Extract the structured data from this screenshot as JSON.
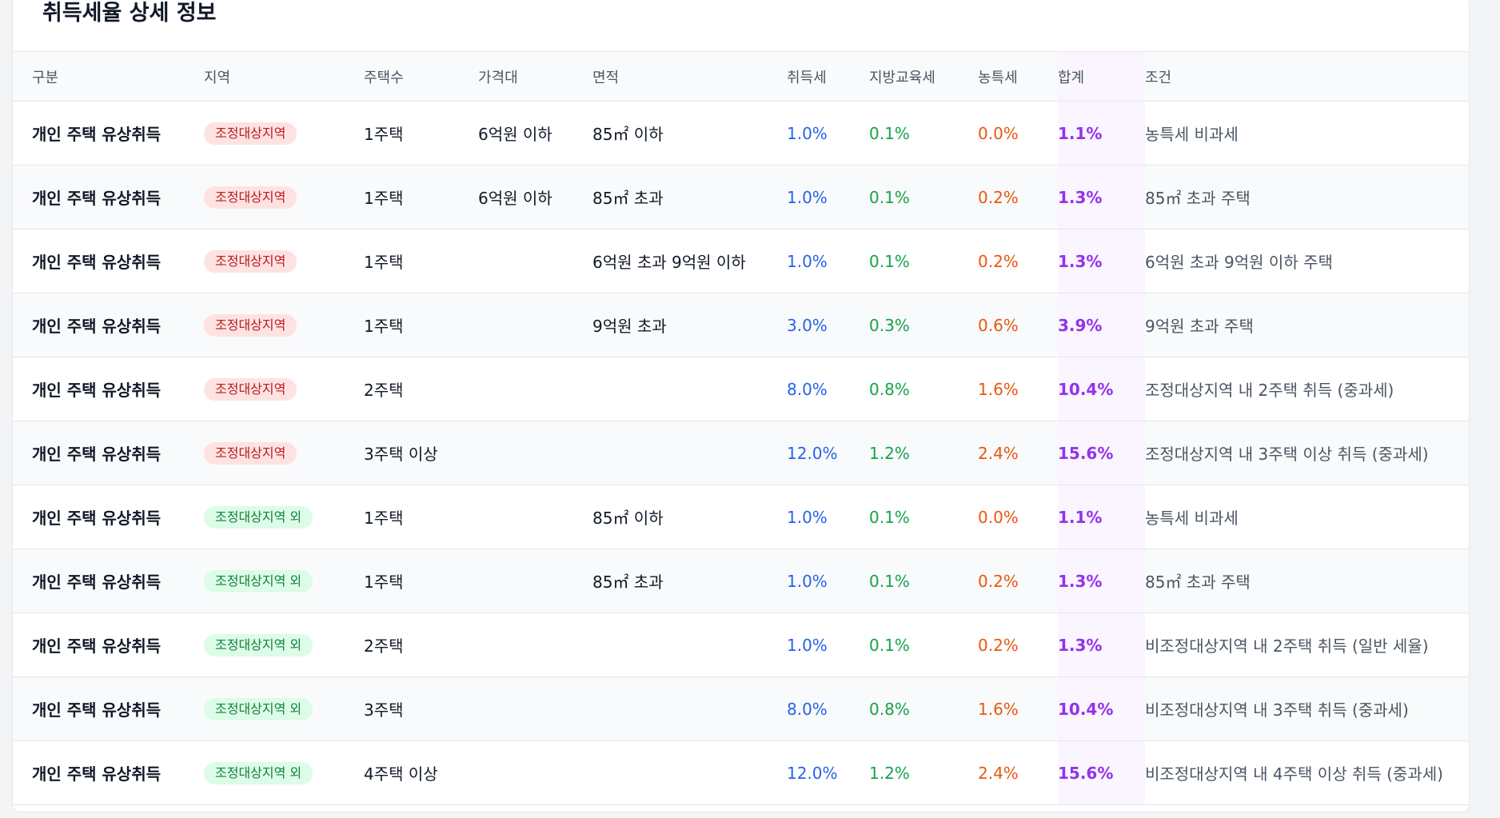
{
  "title": "취득세율 상세 정보",
  "colors": {
    "acquisition_tax": "#2563eb",
    "education_tax": "#16a34a",
    "agriculture_tax": "#ea580c",
    "total": "#9333ea",
    "badge_adjusted_bg": "#fee2e2",
    "badge_non_adjusted_bg": "#dcfce7"
  },
  "columns": [
    "구분",
    "지역",
    "주택수",
    "가격대",
    "면적",
    "취득세",
    "지방교육세",
    "농특세",
    "합계",
    "조건"
  ],
  "rows": [
    {
      "category": "개인 주택 유상취득",
      "region": "조정대상지역",
      "region_type": "adj",
      "houses": "1주택",
      "price": "6억원 이하",
      "area": "85㎡ 이하",
      "acq": "1.0%",
      "edu": "0.1%",
      "agr": "0.0%",
      "total": "1.1%",
      "condition": "농특세 비과세"
    },
    {
      "category": "개인 주택 유상취득",
      "region": "조정대상지역",
      "region_type": "adj",
      "houses": "1주택",
      "price": "6억원 이하",
      "area": "85㎡ 초과",
      "acq": "1.0%",
      "edu": "0.1%",
      "agr": "0.2%",
      "total": "1.3%",
      "condition": "85㎡ 초과 주택"
    },
    {
      "category": "개인 주택 유상취득",
      "region": "조정대상지역",
      "region_type": "adj",
      "houses": "1주택",
      "price": "",
      "area": "6억원 초과 9억원 이하",
      "acq": "1.0%",
      "edu": "0.1%",
      "agr": "0.2%",
      "total": "1.3%",
      "condition": "6억원 초과 9억원 이하 주택"
    },
    {
      "category": "개인 주택 유상취득",
      "region": "조정대상지역",
      "region_type": "adj",
      "houses": "1주택",
      "price": "",
      "area": "9억원 초과",
      "acq": "3.0%",
      "edu": "0.3%",
      "agr": "0.6%",
      "total": "3.9%",
      "condition": "9억원 초과 주택"
    },
    {
      "category": "개인 주택 유상취득",
      "region": "조정대상지역",
      "region_type": "adj",
      "houses": "2주택",
      "price": "",
      "area": "",
      "acq": "8.0%",
      "edu": "0.8%",
      "agr": "1.6%",
      "total": "10.4%",
      "condition": "조정대상지역 내 2주택 취득 (중과세)"
    },
    {
      "category": "개인 주택 유상취득",
      "region": "조정대상지역",
      "region_type": "adj",
      "houses": "3주택 이상",
      "price": "",
      "area": "",
      "acq": "12.0%",
      "edu": "1.2%",
      "agr": "2.4%",
      "total": "15.6%",
      "condition": "조정대상지역 내 3주택 이상 취득 (중과세)"
    },
    {
      "category": "개인 주택 유상취득",
      "region": "조정대상지역 외",
      "region_type": "non",
      "houses": "1주택",
      "price": "",
      "area": "85㎡ 이하",
      "acq": "1.0%",
      "edu": "0.1%",
      "agr": "0.0%",
      "total": "1.1%",
      "condition": "농특세 비과세"
    },
    {
      "category": "개인 주택 유상취득",
      "region": "조정대상지역 외",
      "region_type": "non",
      "houses": "1주택",
      "price": "",
      "area": "85㎡ 초과",
      "acq": "1.0%",
      "edu": "0.1%",
      "agr": "0.2%",
      "total": "1.3%",
      "condition": "85㎡ 초과 주택"
    },
    {
      "category": "개인 주택 유상취득",
      "region": "조정대상지역 외",
      "region_type": "non",
      "houses": "2주택",
      "price": "",
      "area": "",
      "acq": "1.0%",
      "edu": "0.1%",
      "agr": "0.2%",
      "total": "1.3%",
      "condition": "비조정대상지역 내 2주택 취득 (일반 세율)"
    },
    {
      "category": "개인 주택 유상취득",
      "region": "조정대상지역 외",
      "region_type": "non",
      "houses": "3주택",
      "price": "",
      "area": "",
      "acq": "8.0%",
      "edu": "0.8%",
      "agr": "1.6%",
      "total": "10.4%",
      "condition": "비조정대상지역 내 3주택 취득 (중과세)"
    },
    {
      "category": "개인 주택 유상취득",
      "region": "조정대상지역 외",
      "region_type": "non",
      "houses": "4주택 이상",
      "price": "",
      "area": "",
      "acq": "12.0%",
      "edu": "1.2%",
      "agr": "2.4%",
      "total": "15.6%",
      "condition": "비조정대상지역 내 4주택 이상 취득 (중과세)"
    }
  ]
}
